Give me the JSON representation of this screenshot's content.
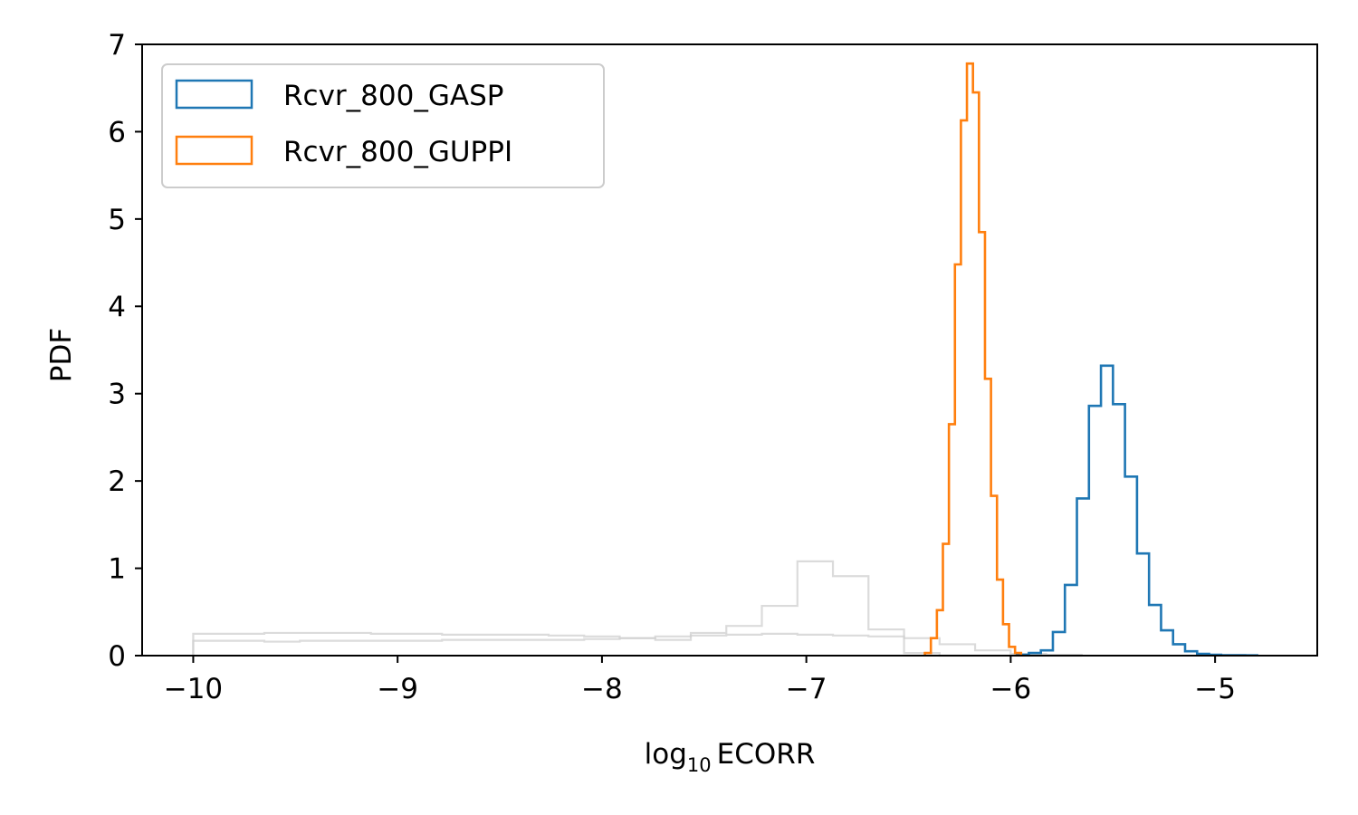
{
  "chart_data": {
    "type": "histogram",
    "xlabel_base": "log",
    "xlabel_sub": "10",
    "xlabel_rest": "ECORR",
    "ylabel": "PDF",
    "xlim": [
      -10.25,
      -4.5
    ],
    "ylim": [
      0,
      7
    ],
    "xticks": [
      -10,
      -9,
      -8,
      -7,
      -6,
      -5
    ],
    "xtick_labels": [
      "−10",
      "−9",
      "−8",
      "−7",
      "−6",
      "−5"
    ],
    "yticks": [
      0,
      1,
      2,
      3,
      4,
      5,
      6,
      7
    ],
    "ytick_labels": [
      "0",
      "1",
      "2",
      "3",
      "4",
      "5",
      "6",
      "7"
    ],
    "legend_position": "upper-left",
    "series": [
      {
        "name": "Rcvr_800_GASP",
        "color": "#1f77b4",
        "in_legend": true,
        "bins_start": -5.97,
        "bin_width": 0.0588,
        "values": [
          0.01,
          0.03,
          0.06,
          0.27,
          0.81,
          1.8,
          2.86,
          3.32,
          2.88,
          2.05,
          1.17,
          0.58,
          0.29,
          0.13,
          0.05,
          0.02,
          0.01,
          0.005,
          0.005,
          0.003
        ]
      },
      {
        "name": "Rcvr_800_GUPPI",
        "color": "#ff7f0e",
        "in_legend": true,
        "bins_start": -6.42,
        "bin_width": 0.02941,
        "values": [
          0.03,
          0.2,
          0.52,
          1.28,
          2.65,
          4.48,
          6.13,
          6.78,
          6.45,
          4.85,
          3.17,
          1.83,
          0.87,
          0.36,
          0.1,
          0.03
        ]
      },
      {
        "name": "prior-a",
        "color": "#cfcfcf",
        "in_legend": false,
        "bins_start": -10.0,
        "bin_width": 0.1739,
        "values": [
          0.25,
          0.25,
          0.26,
          0.26,
          0.26,
          0.25,
          0.25,
          0.24,
          0.24,
          0.24,
          0.23,
          0.22,
          0.2,
          0.18,
          0.26,
          0.34,
          0.57,
          1.08,
          0.91,
          0.3,
          0.03,
          0,
          0,
          0,
          0
        ]
      },
      {
        "name": "prior-b",
        "color": "#cfcfcf",
        "in_legend": false,
        "bins_start": -10.0,
        "bin_width": 0.1739,
        "values": [
          0.17,
          0.17,
          0.16,
          0.17,
          0.17,
          0.17,
          0.17,
          0.18,
          0.18,
          0.18,
          0.18,
          0.19,
          0.2,
          0.22,
          0.23,
          0.24,
          0.25,
          0.24,
          0.23,
          0.22,
          0.2,
          0.13,
          0.06,
          0.02,
          0.01
        ]
      }
    ]
  }
}
